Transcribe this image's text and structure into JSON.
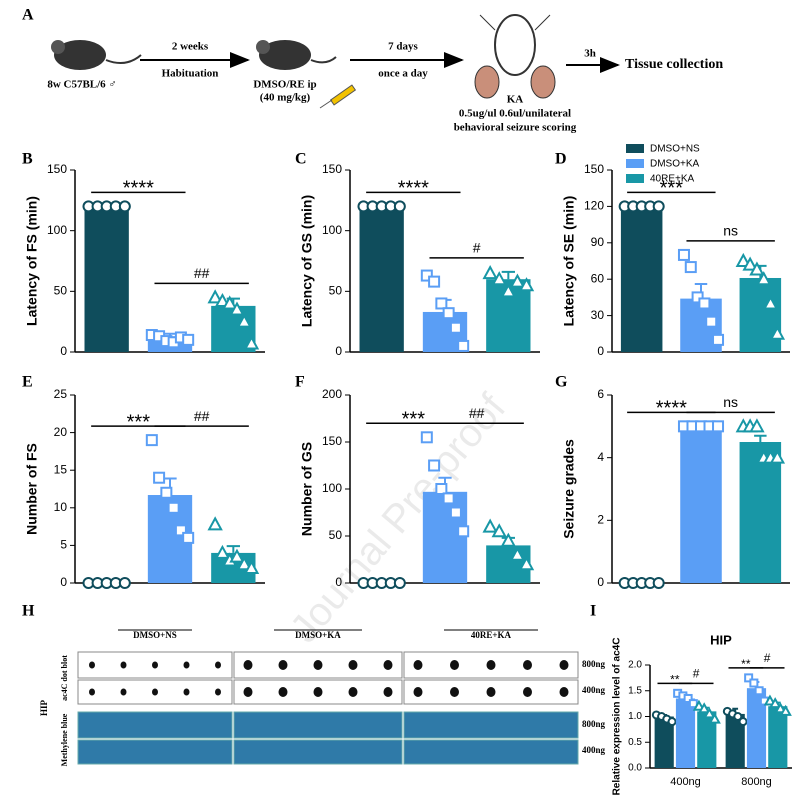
{
  "panel_labels": {
    "A": "A",
    "H": "H"
  },
  "schematic": {
    "mouse": "8w C57BL/6 ♂",
    "step1_top": "2 weeks",
    "step1_bottom": "Habituation",
    "treat1": "DMSO/RE ip",
    "treat2": "(40 mg/kg)",
    "step2_top": "7 days",
    "step2_bottom": "once a day",
    "ka": "KA",
    "ka_dose": "0.5ug/ul   0.6ul/unilateral",
    "ka_note": "behavioral seizure scoring",
    "step3_top": "3h",
    "end": "Tissue collection"
  },
  "groups": [
    {
      "name": "DMSO+NS",
      "color": "#0f4d5c",
      "marker": "circle"
    },
    {
      "name": "DMSO+KA",
      "color": "#5a9ef5",
      "marker": "square"
    },
    {
      "name": "40RE+KA",
      "color": "#1897a6",
      "marker": "triangle"
    }
  ],
  "blot": {
    "cols": [
      "DMSO+NS",
      "DMSO+KA",
      "40RE+KA"
    ],
    "rows": [
      "800ng",
      "400ng",
      "800ng",
      "400ng"
    ],
    "tissue": "HIP",
    "top_label": "ac4C dot blot",
    "bottom_label": "Methylene blue"
  },
  "watermark": "Journal Pre-proof",
  "chart_data": [
    {
      "type": "bar",
      "panel": "B",
      "ylabel": "Latency of FS (min)",
      "ylim": [
        0,
        150
      ],
      "yticks": [
        0,
        50,
        100,
        150
      ],
      "values": [
        120,
        13,
        38
      ],
      "errors": [
        0,
        2,
        6
      ],
      "points": [
        [
          120,
          120,
          120,
          120,
          120
        ],
        [
          14,
          13,
          9,
          8,
          12,
          10
        ],
        [
          45,
          42,
          40,
          35,
          25,
          7
        ]
      ],
      "annotations": [
        {
          "label": "****",
          "between": [
            0,
            1
          ]
        },
        {
          "label": "##",
          "between": [
            1,
            2
          ]
        }
      ]
    },
    {
      "type": "bar",
      "panel": "C",
      "ylabel": "Latency of GS (min)",
      "ylim": [
        0,
        150
      ],
      "yticks": [
        0,
        50,
        100,
        150
      ],
      "values": [
        120,
        33,
        60
      ],
      "errors": [
        0,
        10,
        6
      ],
      "points": [
        [
          120,
          120,
          120,
          120,
          120
        ],
        [
          63,
          58,
          40,
          32,
          20,
          5
        ],
        [
          65,
          60,
          50,
          58,
          55
        ]
      ],
      "annotations": [
        {
          "label": "****",
          "between": [
            0,
            1
          ]
        },
        {
          "label": "#",
          "between": [
            1,
            2
          ]
        }
      ]
    },
    {
      "type": "bar",
      "panel": "D",
      "ylabel": "Latency of SE (min)",
      "ylim": [
        0,
        150
      ],
      "yticks": [
        0,
        30,
        60,
        90,
        120,
        150
      ],
      "values": [
        120,
        44,
        61
      ],
      "errors": [
        0,
        12,
        10
      ],
      "points": [
        [
          120,
          120,
          120,
          120,
          120
        ],
        [
          80,
          70,
          45,
          40,
          25,
          10
        ],
        [
          75,
          72,
          68,
          60,
          40,
          15
        ]
      ],
      "annotations": [
        {
          "label": "***",
          "between": [
            0,
            1
          ]
        },
        {
          "label": "ns",
          "between": [
            1,
            2
          ]
        }
      ]
    },
    {
      "type": "bar",
      "panel": "E",
      "ylabel": "Number of FS",
      "ylim": [
        0,
        25
      ],
      "yticks": [
        0,
        5,
        10,
        15,
        20,
        25
      ],
      "values": [
        0,
        11.7,
        4
      ],
      "errors": [
        0,
        2.2,
        0.9
      ],
      "points": [
        [
          0,
          0,
          0,
          0,
          0
        ],
        [
          19,
          14,
          12,
          10,
          7,
          6
        ],
        [
          7.8,
          4,
          3,
          3.5,
          2.5,
          2
        ]
      ],
      "annotations": [
        {
          "label": "***",
          "between": [
            0,
            1
          ]
        },
        {
          "label": "##",
          "between": [
            1,
            2
          ]
        }
      ]
    },
    {
      "type": "bar",
      "panel": "F",
      "ylabel": "Number of GS",
      "ylim": [
        0,
        200
      ],
      "yticks": [
        0,
        50,
        100,
        150,
        200
      ],
      "values": [
        0,
        97,
        40
      ],
      "errors": [
        0,
        15,
        8
      ],
      "points": [
        [
          0,
          0,
          0,
          0,
          0
        ],
        [
          155,
          125,
          100,
          90,
          75,
          55
        ],
        [
          60,
          55,
          45,
          30,
          20
        ]
      ],
      "annotations": [
        {
          "label": "***",
          "between": [
            0,
            1
          ]
        },
        {
          "label": "##",
          "between": [
            1,
            2
          ]
        }
      ]
    },
    {
      "type": "bar",
      "panel": "G",
      "ylabel": "Seizure grades",
      "ylim": [
        0,
        6
      ],
      "yticks": [
        0,
        2,
        4,
        6
      ],
      "values": [
        0,
        5,
        4.5
      ],
      "errors": [
        0,
        0,
        0.2
      ],
      "points": [
        [
          0,
          0,
          0,
          0,
          0
        ],
        [
          5,
          5,
          5,
          5,
          5
        ],
        [
          5,
          5,
          5,
          4,
          4,
          4
        ]
      ],
      "annotations": [
        {
          "label": "****",
          "between": [
            0,
            1
          ]
        },
        {
          "label": "ns",
          "between": [
            1,
            2
          ]
        }
      ]
    },
    {
      "type": "bar",
      "panel": "I",
      "title": "HIP",
      "ylabel": "Relative expression level of ac4C",
      "categories": [
        "400ng",
        "800ng"
      ],
      "ylim": [
        0,
        2
      ],
      "yticks": [
        {
          "value": 0,
          "label": "0.0"
        },
        0.5,
        {
          "value": 1,
          "label": "1.0"
        },
        1.5,
        {
          "value": 2,
          "label": "2.0"
        }
      ],
      "values": [
        [
          1.0,
          1.35,
          1.1
        ],
        [
          1.05,
          1.55,
          1.2
        ]
      ],
      "errors": [
        [
          0.03,
          0.07,
          0.07
        ],
        [
          0.1,
          0.12,
          0.07
        ]
      ],
      "points": [
        [
          [
            1.03,
            1.0,
            0.95,
            0.9
          ],
          [
            1.45,
            1.4,
            1.35,
            1.25
          ],
          [
            1.2,
            1.15,
            1.05,
            0.95
          ]
        ],
        [
          [
            1.1,
            1.05,
            1.0,
            0.9
          ],
          [
            1.75,
            1.65,
            1.5,
            1.3
          ],
          [
            1.3,
            1.25,
            1.15,
            1.1
          ]
        ]
      ],
      "annotations": [
        {
          "category": 0,
          "label": "**",
          "between": [
            0,
            1
          ]
        },
        {
          "category": 0,
          "label": "#",
          "between": [
            1,
            2
          ]
        },
        {
          "category": 1,
          "label": "**",
          "between": [
            0,
            1
          ]
        },
        {
          "category": 1,
          "label": "#",
          "between": [
            1,
            2
          ]
        }
      ]
    }
  ]
}
